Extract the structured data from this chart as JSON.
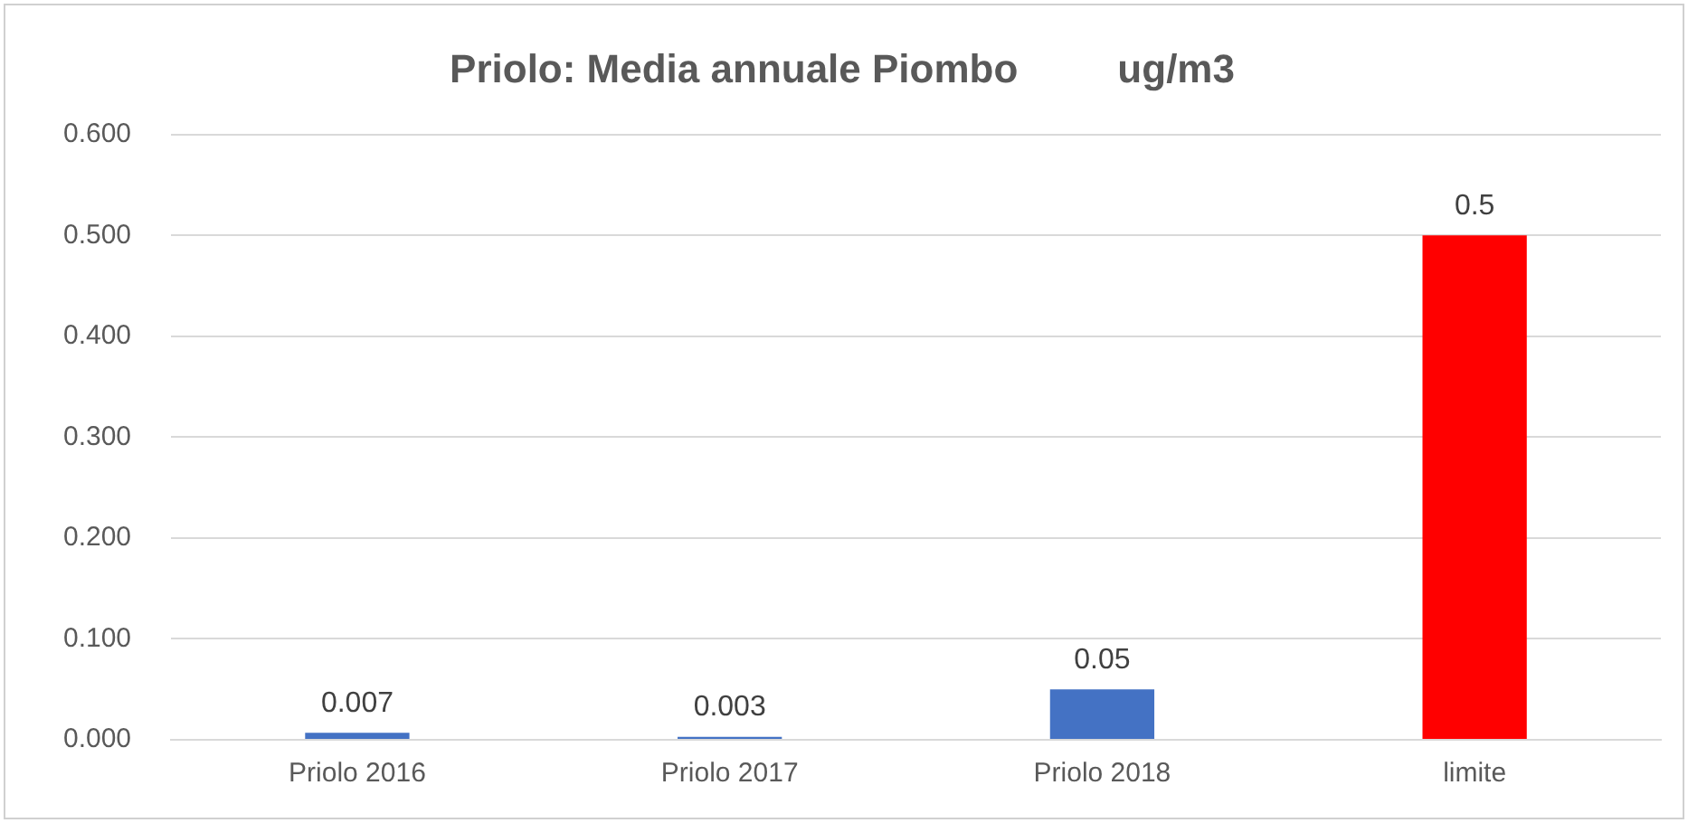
{
  "chart_data": {
    "type": "bar",
    "title": "Priolo: Media annuale Piombo         ug/m3",
    "categories": [
      "Priolo 2016",
      "Priolo 2017",
      "Priolo 2018",
      "limite"
    ],
    "values": [
      0.007,
      0.003,
      0.05,
      0.5
    ],
    "colors": [
      "#4472c4",
      "#4472c4",
      "#4472c4",
      "#ff0000"
    ],
    "ylim": [
      0,
      0.6
    ],
    "yticks": [
      {
        "value": 0,
        "label": "0.000"
      },
      {
        "value": 0.1,
        "label": "0.100"
      },
      {
        "value": 0.2,
        "label": "0.200"
      },
      {
        "value": 0.3,
        "label": "0.300"
      },
      {
        "value": 0.4,
        "label": "0.400"
      },
      {
        "value": 0.5,
        "label": "0.500"
      },
      {
        "value": 0.6,
        "label": "0.600"
      }
    ],
    "grid": "y",
    "data_labels": true,
    "legend": false
  }
}
